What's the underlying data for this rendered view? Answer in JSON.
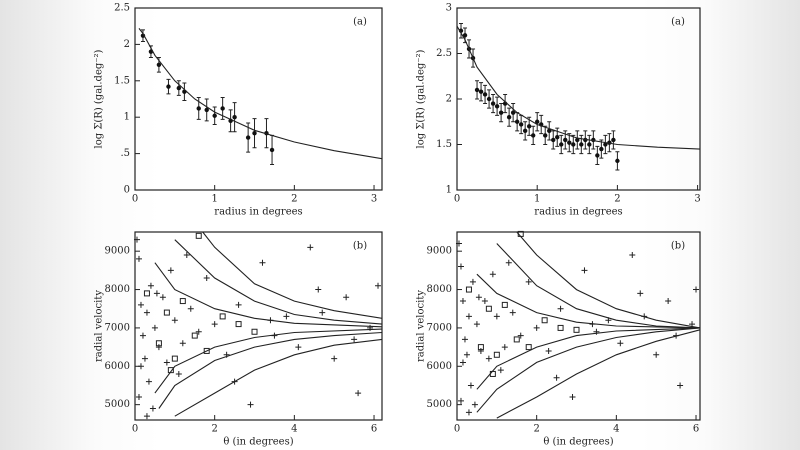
{
  "chart_data": [
    {
      "type": "scatter",
      "annotation": "(a)",
      "y_label": "log Σ(R) (gal.deg⁻²)",
      "x_label": "radius in degrees",
      "xlim": [
        0,
        3.1
      ],
      "ylim": [
        0,
        2.5
      ],
      "xticks": [
        0,
        1,
        2,
        3
      ],
      "yticks": [
        0,
        {
          "value": 0.5,
          "label": ".5"
        },
        1,
        1.5,
        2,
        2.5
      ],
      "series": [
        {
          "marker": "dot",
          "x": [
            0.1,
            0.2,
            0.3,
            0.42,
            0.55,
            0.62,
            0.8,
            0.9,
            1.0,
            1.1,
            1.2,
            1.25,
            1.42,
            1.5,
            1.65,
            1.72
          ],
          "values": [
            2.12,
            1.9,
            1.72,
            1.42,
            1.4,
            1.35,
            1.12,
            1.1,
            1.02,
            1.12,
            0.95,
            1.0,
            0.72,
            0.78,
            0.78,
            0.55
          ],
          "errors": [
            0.08,
            0.08,
            0.1,
            0.1,
            0.1,
            0.12,
            0.15,
            0.15,
            0.12,
            0.15,
            0.15,
            0.2,
            0.2,
            0.2,
            0.2,
            0.2
          ]
        },
        {
          "marker": "line",
          "x": [
            0.05,
            0.1,
            0.25,
            0.5,
            0.75,
            1,
            1.5,
            2,
            2.5,
            3.1
          ],
          "values": [
            2.22,
            2.15,
            1.85,
            1.5,
            1.25,
            1.07,
            0.82,
            0.66,
            0.54,
            0.43
          ]
        }
      ]
    },
    {
      "type": "scatter",
      "annotation": "(a)",
      "y_label": "log Σ(R) (gal.deg⁻²)",
      "x_label": "radius in degrees",
      "xlim": [
        0,
        3.03
      ],
      "ylim": [
        1,
        3
      ],
      "xticks": [
        0,
        1,
        2,
        3
      ],
      "yticks": [
        1,
        1.5,
        2,
        2.5,
        3
      ],
      "series": [
        {
          "marker": "dot",
          "x": [
            0.05,
            0.1,
            0.15,
            0.2,
            0.25,
            0.3,
            0.35,
            0.4,
            0.45,
            0.5,
            0.55,
            0.6,
            0.65,
            0.7,
            0.75,
            0.8,
            0.85,
            0.9,
            0.95,
            1.0,
            1.05,
            1.1,
            1.15,
            1.2,
            1.25,
            1.3,
            1.35,
            1.4,
            1.45,
            1.5,
            1.55,
            1.6,
            1.65,
            1.7,
            1.75,
            1.8,
            1.85,
            1.9,
            1.95,
            2.0
          ],
          "values": [
            2.75,
            2.7,
            2.55,
            2.45,
            2.1,
            2.08,
            2.05,
            2.0,
            1.95,
            1.92,
            1.85,
            1.95,
            1.8,
            1.85,
            1.75,
            1.72,
            1.65,
            1.7,
            1.6,
            1.75,
            1.72,
            1.6,
            1.65,
            1.55,
            1.58,
            1.5,
            1.55,
            1.52,
            1.5,
            1.55,
            1.5,
            1.55,
            1.5,
            1.55,
            1.38,
            1.45,
            1.5,
            1.52,
            1.55,
            1.32
          ],
          "errors": [
            0.08,
            0.08,
            0.1,
            0.1,
            0.1,
            0.1,
            0.1,
            0.1,
            0.1,
            0.1,
            0.1,
            0.1,
            0.1,
            0.1,
            0.1,
            0.1,
            0.1,
            0.1,
            0.1,
            0.1,
            0.1,
            0.1,
            0.1,
            0.1,
            0.1,
            0.1,
            0.1,
            0.1,
            0.1,
            0.1,
            0.1,
            0.1,
            0.1,
            0.1,
            0.1,
            0.1,
            0.1,
            0.1,
            0.1,
            0.1
          ]
        },
        {
          "marker": "line",
          "x": [
            0,
            0.1,
            0.25,
            0.5,
            0.75,
            1,
            1.5,
            2,
            2.5,
            3.03
          ],
          "values": [
            2.8,
            2.65,
            2.35,
            2.05,
            1.85,
            1.72,
            1.57,
            1.5,
            1.47,
            1.45
          ]
        }
      ]
    },
    {
      "type": "scatter",
      "annotation": "(b)",
      "y_label": "radial velocity",
      "x_label": "θ (in degrees)",
      "xlim": [
        0,
        6.2
      ],
      "ylim": [
        4600,
        9500
      ],
      "xticks": [
        0,
        2,
        4,
        6
      ],
      "yticks": [
        5000,
        6000,
        7000,
        8000,
        9000
      ],
      "series": [
        {
          "marker": "plus",
          "x": [
            0.05,
            0.1,
            0.15,
            0.2,
            0.1,
            0.3,
            0.25,
            0.4,
            0.35,
            0.5,
            0.6,
            0.45,
            0.7,
            0.8,
            0.9,
            1.0,
            1.2,
            1.1,
            1.4,
            1.6,
            1.8,
            2.0,
            2.3,
            2.6,
            2.9,
            3.2,
            3.5,
            3.8,
            4.1,
            4.4,
            4.7,
            5.0,
            5.3,
            5.6,
            5.9,
            0.15,
            0.3,
            0.55,
            1.3,
            2.5,
            3.4,
            4.6,
            5.5,
            6.1
          ],
          "values": [
            9300,
            8800,
            7600,
            6800,
            5200,
            7400,
            6200,
            8100,
            5600,
            7000,
            6500,
            4900,
            7800,
            6100,
            8500,
            7200,
            6600,
            5800,
            7500,
            6900,
            8300,
            7100,
            6300,
            7600,
            5000,
            8700,
            6800,
            7300,
            6500,
            9100,
            7400,
            6200,
            7800,
            5300,
            7000,
            6000,
            4700,
            7900,
            8900,
            5600,
            7200,
            8000,
            6700,
            8100
          ]
        },
        {
          "marker": "square",
          "x": [
            0.3,
            0.6,
            0.8,
            1.0,
            1.2,
            1.5,
            1.8,
            2.2,
            2.6,
            3.0,
            0.9,
            1.6
          ],
          "values": [
            7900,
            6600,
            7400,
            6200,
            7700,
            6800,
            6400,
            7300,
            7100,
            6900,
            5900,
            9400
          ]
        },
        {
          "marker": "line",
          "x": [
            1.7,
            2,
            3,
            4,
            5,
            6.2
          ],
          "values": [
            9500,
            9100,
            8150,
            7700,
            7450,
            7250
          ]
        },
        {
          "marker": "line",
          "x": [
            1,
            2,
            3,
            4,
            5,
            6.2
          ],
          "values": [
            9300,
            8300,
            7700,
            7350,
            7200,
            7100
          ]
        },
        {
          "marker": "line",
          "x": [
            0.5,
            1,
            2,
            3,
            4,
            6.2
          ],
          "values": [
            8700,
            8000,
            7500,
            7250,
            7120,
            7030
          ]
        },
        {
          "marker": "line",
          "x": [
            0.5,
            1,
            2,
            3,
            4,
            6.2
          ],
          "values": [
            5300,
            6000,
            6500,
            6750,
            6880,
            6970
          ]
        },
        {
          "marker": "line",
          "x": [
            0.6,
            1,
            2,
            3,
            4,
            5,
            6.2
          ],
          "values": [
            4900,
            5500,
            6150,
            6500,
            6700,
            6800,
            6880
          ]
        },
        {
          "marker": "line",
          "x": [
            1,
            2,
            3,
            4,
            5,
            6.2
          ],
          "values": [
            4700,
            5300,
            5900,
            6300,
            6550,
            6700
          ]
        }
      ]
    },
    {
      "type": "scatter",
      "annotation": "(b)",
      "y_label": "radial velocity",
      "x_label": "θ (in degrees)",
      "xlim": [
        0,
        6.1
      ],
      "ylim": [
        4600,
        9500
      ],
      "xticks": [
        0,
        2,
        4,
        6
      ],
      "yticks": [
        5000,
        6000,
        7000,
        8000,
        9000
      ],
      "series": [
        {
          "marker": "plus",
          "x": [
            0.05,
            0.1,
            0.15,
            0.2,
            0.1,
            0.3,
            0.25,
            0.4,
            0.35,
            0.5,
            0.6,
            0.45,
            0.7,
            0.8,
            0.9,
            1.0,
            1.2,
            1.1,
            1.4,
            1.6,
            1.8,
            2.0,
            2.3,
            2.6,
            2.9,
            3.2,
            3.5,
            3.8,
            4.1,
            4.4,
            4.7,
            5.0,
            5.3,
            5.6,
            5.9,
            0.15,
            0.3,
            0.55,
            1.3,
            2.5,
            3.4,
            4.6,
            5.5,
            6.0
          ],
          "values": [
            9200,
            8600,
            7700,
            6700,
            5100,
            7300,
            6300,
            8200,
            5500,
            7100,
            6400,
            5000,
            7700,
            6200,
            8400,
            7300,
            6500,
            5900,
            7400,
            6800,
            8200,
            7000,
            6400,
            7500,
            5200,
            8500,
            6900,
            7200,
            6600,
            8900,
            7300,
            6300,
            7700,
            5500,
            7100,
            6100,
            4800,
            7800,
            8700,
            5700,
            7100,
            7900,
            6800,
            8000
          ]
        },
        {
          "marker": "square",
          "x": [
            0.3,
            0.6,
            0.8,
            1.0,
            1.2,
            1.5,
            1.8,
            2.2,
            2.6,
            3.0,
            0.9,
            1.6
          ],
          "values": [
            8000,
            6500,
            7500,
            6300,
            7600,
            6700,
            6500,
            7200,
            7000,
            6950,
            5800,
            9450
          ]
        },
        {
          "marker": "line",
          "x": [
            1.5,
            2,
            3,
            4,
            5,
            6.1
          ],
          "values": [
            9500,
            8900,
            8000,
            7500,
            7200,
            7000
          ]
        },
        {
          "marker": "line",
          "x": [
            1,
            2,
            3,
            4,
            5,
            6.1
          ],
          "values": [
            9200,
            8100,
            7500,
            7200,
            7050,
            7000
          ]
        },
        {
          "marker": "line",
          "x": [
            0.5,
            1,
            2,
            3,
            4,
            6.1
          ],
          "values": [
            8400,
            7900,
            7400,
            7150,
            7050,
            7000
          ]
        },
        {
          "marker": "line",
          "x": [
            0.5,
            1,
            2,
            3,
            4,
            6.1
          ],
          "values": [
            5400,
            6000,
            6500,
            6800,
            6920,
            7000
          ]
        },
        {
          "marker": "line",
          "x": [
            0.5,
            1,
            2,
            3,
            4,
            5,
            6.1
          ],
          "values": [
            4800,
            5400,
            6100,
            6500,
            6750,
            6900,
            7000
          ]
        },
        {
          "marker": "line",
          "x": [
            1,
            2,
            3,
            4,
            5,
            6.1
          ],
          "values": [
            4650,
            5200,
            5800,
            6300,
            6650,
            6950
          ]
        }
      ]
    }
  ]
}
